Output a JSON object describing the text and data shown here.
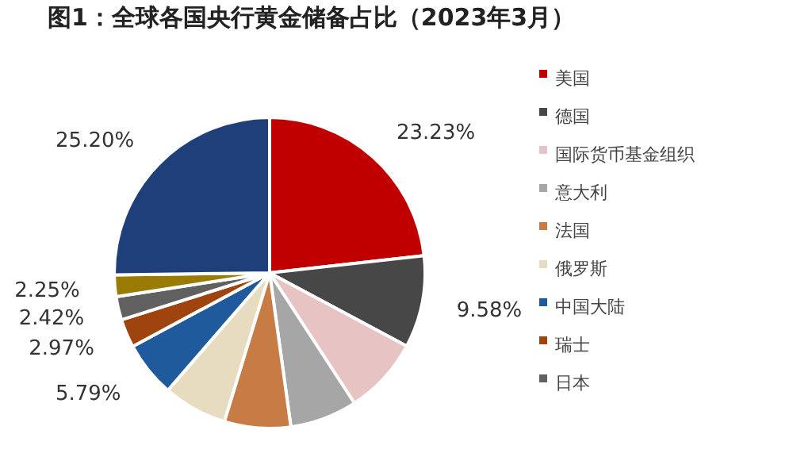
{
  "chart_data": {
    "type": "pie",
    "title": "图1：全球各国央行黄金储备占比（2023年3月）",
    "categories": [
      "美国",
      "德国",
      "国际货币基金组织",
      "意大利",
      "法国",
      "俄罗斯",
      "中国大陆",
      "瑞士",
      "日本",
      null,
      null
    ],
    "values": [
      23.23,
      9.58,
      8.0,
      7.0,
      6.9,
      6.66,
      5.79,
      2.97,
      2.42,
      2.25,
      25.2
    ],
    "colors": [
      "#c00000",
      "#474747",
      "#e8c3c3",
      "#a6a6a6",
      "#c87c45",
      "#e8dcc0",
      "#1f5a9c",
      "#a0440f",
      "#606060",
      "#9a7b06",
      "#1f3f7a"
    ],
    "value_labels": [
      "23.23%",
      "9.58%",
      null,
      null,
      null,
      null,
      "5.79%",
      "2.97%",
      "2.42%",
      "2.25%",
      "25.20%"
    ],
    "legend": "right"
  }
}
